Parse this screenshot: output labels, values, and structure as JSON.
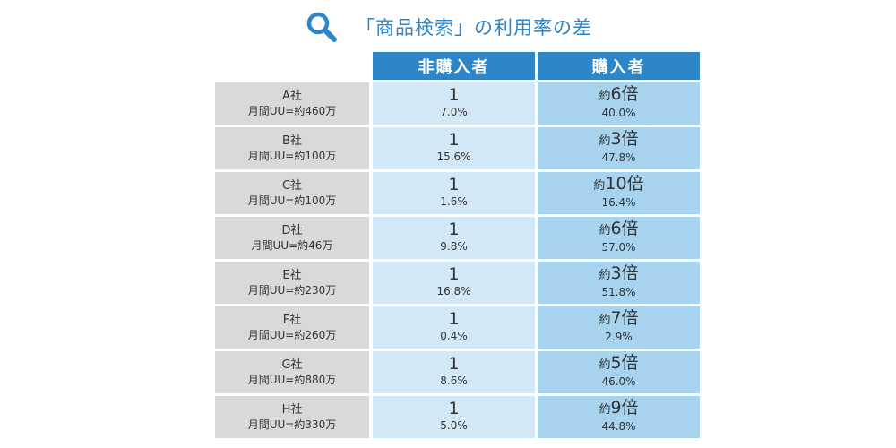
{
  "title": "「商品検索」の利用率の差",
  "icon": "search-icon",
  "colors": {
    "accent": "#2e86c6",
    "header_bg": "#2e86c6",
    "company_bg": "#d9d9d9",
    "non_buyer_bg": "#d3e8f6",
    "buyer_bg": "#a7d3ef"
  },
  "headers": {
    "non_buyer": "非購入者",
    "buyer": "購入者"
  },
  "chart_data": {
    "type": "table",
    "title": "「商品検索」の利用率の差",
    "columns": [
      "非購入者",
      "購入者"
    ],
    "rows": [
      {
        "company": "A社",
        "monthly_uu": "月間UU=約460万",
        "non_buyer_ratio": "1",
        "non_buyer_rate": "7.0%",
        "buyer_prefix": "約",
        "buyer_ratio": "6倍",
        "buyer_rate": "40.0%"
      },
      {
        "company": "B社",
        "monthly_uu": "月間UU=約100万",
        "non_buyer_ratio": "1",
        "non_buyer_rate": "15.6%",
        "buyer_prefix": "約",
        "buyer_ratio": "3倍",
        "buyer_rate": "47.8%"
      },
      {
        "company": "C社",
        "monthly_uu": "月間UU=約100万",
        "non_buyer_ratio": "1",
        "non_buyer_rate": "1.6%",
        "buyer_prefix": "約",
        "buyer_ratio": "10倍",
        "buyer_rate": "16.4%"
      },
      {
        "company": "D社",
        "monthly_uu": "月間UU=約46万",
        "non_buyer_ratio": "1",
        "non_buyer_rate": "9.8%",
        "buyer_prefix": "約",
        "buyer_ratio": "6倍",
        "buyer_rate": "57.0%"
      },
      {
        "company": "E社",
        "monthly_uu": "月間UU=約230万",
        "non_buyer_ratio": "1",
        "non_buyer_rate": "16.8%",
        "buyer_prefix": "約",
        "buyer_ratio": "3倍",
        "buyer_rate": "51.8%"
      },
      {
        "company": "F社",
        "monthly_uu": "月間UU=約260万",
        "non_buyer_ratio": "1",
        "non_buyer_rate": "0.4%",
        "buyer_prefix": "約",
        "buyer_ratio": "7倍",
        "buyer_rate": "2.9%"
      },
      {
        "company": "G社",
        "monthly_uu": "月間UU=約880万",
        "non_buyer_ratio": "1",
        "non_buyer_rate": "8.6%",
        "buyer_prefix": "約",
        "buyer_ratio": "5倍",
        "buyer_rate": "46.0%"
      },
      {
        "company": "H社",
        "monthly_uu": "月間UU=約330万",
        "non_buyer_ratio": "1",
        "non_buyer_rate": "5.0%",
        "buyer_prefix": "約",
        "buyer_ratio": "9倍",
        "buyer_rate": "44.8%"
      }
    ]
  }
}
